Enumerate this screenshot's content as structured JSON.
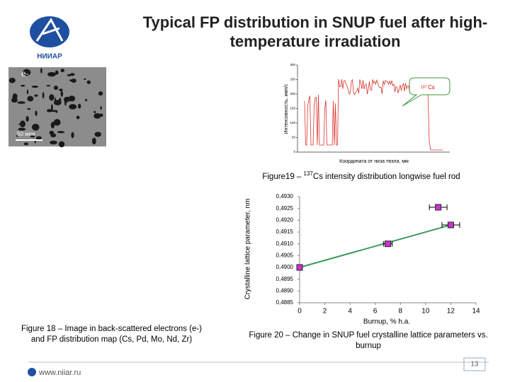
{
  "header": {
    "logo_text": "НИИАР",
    "title": "Typical FP distribution in SNUP fuel after high-temperature irradiation"
  },
  "figure18": {
    "label": "е-",
    "scale_label": "50 мкм",
    "caption": "Figure 18 – Image in back-scattered electrons (e-) and FP distribution map (Cs, Pd, Mo, Nd, Zr)"
  },
  "figure19": {
    "y_label": "Интенсивность, имп/с",
    "x_label": "Координата от низа твэла, мм",
    "yticks": [
      0,
      50,
      100,
      150,
      200,
      250,
      300
    ],
    "annotation": {
      "mass": "137",
      "element": "Cs"
    },
    "caption": {
      "prefix": "Figure19 – ",
      "mass": "137",
      "text": "Cs intensity distribution  longwise fuel rod"
    }
  },
  "chart_data": {
    "type": "scatter",
    "caption": "Figure 20 – Change in SNUP fuel crystalline lattice parameters vs. burnup",
    "x_label": "Burnup, % h.a.",
    "y_label": "Crystalline lattice parameter, nm",
    "x": [
      0,
      7,
      11,
      12
    ],
    "values": [
      0.49,
      0.491,
      0.49255,
      0.4918
    ],
    "x_errors": [
      0,
      0.35,
      0.7,
      0.7
    ],
    "color": "#cc33cc",
    "trendline": {
      "x": [
        0,
        12
      ],
      "values": [
        0.49,
        0.4918
      ],
      "color": "#3a9a5a"
    },
    "xlim": [
      0,
      14
    ],
    "xticks": [
      0,
      2,
      4,
      6,
      8,
      10,
      12,
      14
    ],
    "ylim": [
      0.4885,
      0.493
    ],
    "yticks": [
      {
        "value": 0.4885,
        "label": "0,4885"
      },
      {
        "value": 0.489,
        "label": "0,4890"
      },
      {
        "value": 0.4895,
        "label": "0,4895"
      },
      {
        "value": 0.49,
        "label": "0,4900"
      },
      {
        "value": 0.4905,
        "label": "0,4905"
      },
      {
        "value": 0.491,
        "label": "0,4910"
      },
      {
        "value": 0.4915,
        "label": "0,4915"
      },
      {
        "value": 0.492,
        "label": "0,4920"
      },
      {
        "value": 0.4925,
        "label": "0,4925"
      },
      {
        "value": 0.493,
        "label": "0,4930"
      }
    ]
  },
  "footer": {
    "url": "www.niiar.ru",
    "page": "13"
  }
}
